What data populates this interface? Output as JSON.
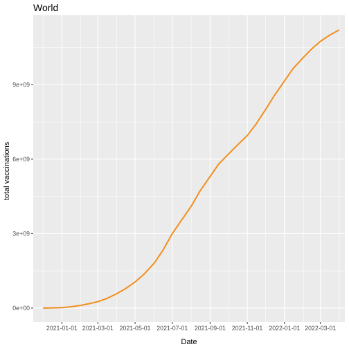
{
  "chart_data": {
    "type": "line",
    "title": "World",
    "xlabel": "Date",
    "ylabel": "total vaccinations",
    "x_ticks": [
      "2021-01-01",
      "2021-03-01",
      "2021-05-01",
      "2021-07-01",
      "2021-09-01",
      "2021-11-01",
      "2022-01-01",
      "2022-03-01"
    ],
    "y_ticks": [
      0,
      3000000000,
      6000000000,
      9000000000
    ],
    "y_tick_labels": [
      "0e+00",
      "3e+09",
      "6e+09",
      "9e+09"
    ],
    "xlim": [
      "2020-11-15",
      "2022-04-10"
    ],
    "ylim": [
      -560000000,
      11800000000
    ],
    "grid": true,
    "series": [
      {
        "color": "#F28E1C",
        "x": [
          "2020-12-02",
          "2020-12-15",
          "2021-01-01",
          "2021-01-15",
          "2021-02-01",
          "2021-02-15",
          "2021-03-01",
          "2021-03-15",
          "2021-04-01",
          "2021-04-15",
          "2021-05-01",
          "2021-05-15",
          "2021-06-01",
          "2021-06-15",
          "2021-07-01",
          "2021-07-15",
          "2021-08-01",
          "2021-08-15",
          "2021-09-01",
          "2021-09-15",
          "2021-10-01",
          "2021-10-15",
          "2021-11-01",
          "2021-11-15",
          "2021-12-01",
          "2021-12-15",
          "2022-01-01",
          "2022-01-15",
          "2022-02-01",
          "2022-02-15",
          "2022-03-01",
          "2022-03-15",
          "2022-03-31"
        ],
        "y": [
          0,
          10000000,
          20000000,
          50000000,
          110000000,
          180000000,
          260000000,
          380000000,
          580000000,
          780000000,
          1050000000,
          1350000000,
          1800000000,
          2300000000,
          3000000000,
          3500000000,
          4100000000,
          4700000000,
          5300000000,
          5800000000,
          6200000000,
          6550000000,
          6950000000,
          7400000000,
          8000000000,
          8550000000,
          9150000000,
          9650000000,
          10100000000,
          10450000000,
          10750000000,
          10980000000,
          11200000000
        ]
      }
    ]
  }
}
